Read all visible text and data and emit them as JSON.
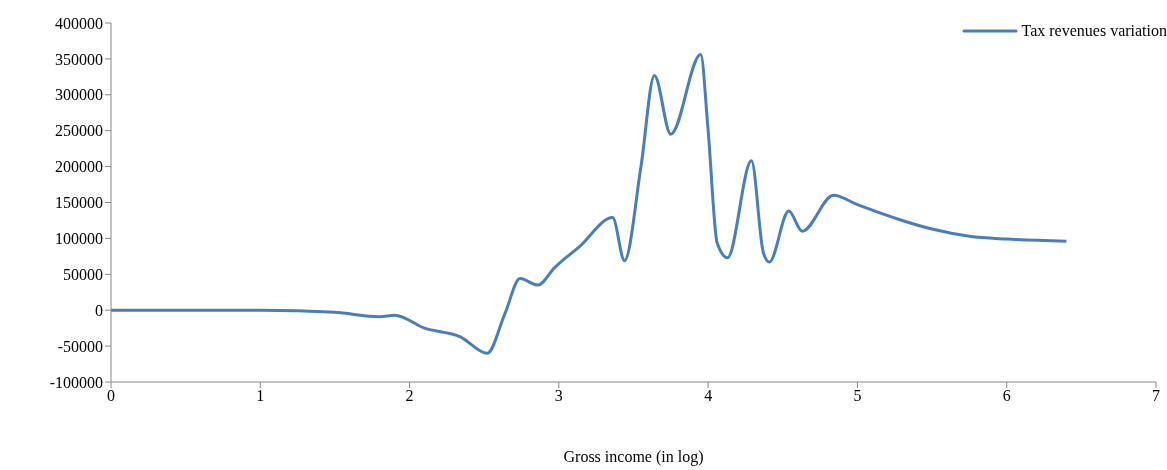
{
  "chart_data": {
    "type": "line",
    "xlabel": "Gross income (in log)",
    "xlim": [
      0,
      7
    ],
    "xticks": [
      0,
      1,
      2,
      3,
      4,
      5,
      6,
      7
    ],
    "ylim": [
      -100000,
      400000
    ],
    "yticks": [
      -100000,
      -50000,
      0,
      50000,
      100000,
      150000,
      200000,
      250000,
      300000,
      350000,
      400000
    ],
    "grid": false,
    "legend": "top right",
    "marker": "none",
    "line_style": "solid",
    "series": [
      {
        "name": "Tax revenues variation",
        "color": "#4a7ebb",
        "x": [
          0,
          1,
          1.5,
          1.8,
          1.9,
          2.1,
          2.34,
          2.52,
          2.64,
          2.74,
          2.86,
          2.97,
          3.14,
          3.36,
          3.44,
          3.55,
          3.64,
          3.75,
          3.95,
          4.0,
          4.06,
          4.13,
          4.29,
          4.37,
          4.41,
          4.54,
          4.63,
          4.84,
          5.0,
          5.3,
          5.5,
          5.75,
          6.0,
          6.4
        ],
        "values": [
          0,
          0,
          -3000,
          -9000,
          -7000,
          -25000,
          -37000,
          -60000,
          -4000,
          44000,
          35000,
          59000,
          89000,
          129000,
          69000,
          200000,
          327000,
          245000,
          356000,
          250000,
          94000,
          73000,
          208000,
          80000,
          67000,
          138000,
          110000,
          160000,
          147000,
          125000,
          113000,
          103000,
          99000,
          96000
        ]
      }
    ]
  }
}
